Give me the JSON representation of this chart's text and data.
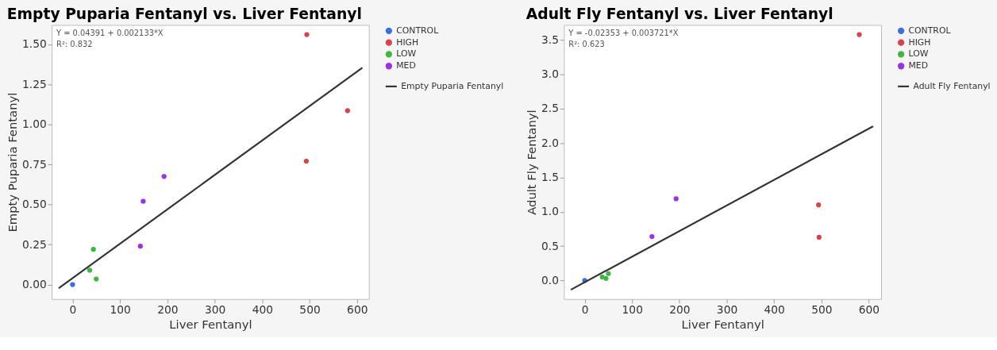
{
  "chart_data": [
    {
      "type": "scatter",
      "title": "Empty Puparia Fentanyl vs. Liver Fentanyl",
      "xlabel": "Liver Fentanyl",
      "ylabel": "Empty Puparia Fentanyl",
      "annotations": [
        "Y = 0.04391 + 0.002133*X",
        "R²: 0.832"
      ],
      "xlim": [
        -44,
        625
      ],
      "ylim": [
        -0.09,
        1.62
      ],
      "xticks": [
        0,
        100,
        200,
        300,
        400,
        500,
        600
      ],
      "yticks": [
        {
          "value": 0,
          "label": "0.00"
        },
        0.25,
        {
          "value": 0.5,
          "label": "0.50"
        },
        0.75,
        {
          "value": 1,
          "label": "1.00"
        },
        1.25,
        {
          "value": 1.5,
          "label": "1.50"
        }
      ],
      "legend": "right",
      "marker": "circle",
      "series": [
        {
          "name": "CONTROL",
          "color": "#3a6fe0",
          "x": [
            0
          ],
          "values": [
            0.0
          ]
        },
        {
          "name": "HIGH",
          "color": "#d9414b",
          "x": [
            494,
            493,
            580
          ],
          "values": [
            1.56,
            0.77,
            1.085
          ]
        },
        {
          "name": "LOW",
          "color": "#3cb83c",
          "x": [
            36,
            44,
            50
          ],
          "values": [
            0.09,
            0.22,
            0.035
          ]
        },
        {
          "name": "MED",
          "color": "#9b30e8",
          "x": [
            143,
            149,
            193
          ],
          "values": [
            0.24,
            0.52,
            0.675
          ]
        },
        {
          "name": "Empty Puparia Fentanyl",
          "type": "line",
          "marker": "none",
          "color": "#333333",
          "x": [
            -28,
            610
          ],
          "values": [
            -0.02,
            1.35
          ]
        }
      ]
    },
    {
      "type": "scatter",
      "title": "Adult Fly Fentanyl vs. Liver Fentanyl",
      "xlabel": "Liver Fentanyl",
      "ylabel": "Adult Fly Fentanyl",
      "annotations": [
        "Y = -0.02353 + 0.003721*X",
        "R²: 0.623"
      ],
      "xlim": [
        -44,
        626
      ],
      "ylim": [
        -0.27,
        3.72
      ],
      "xticks": [
        0,
        100,
        200,
        300,
        400,
        500,
        600
      ],
      "yticks": [
        {
          "value": 0,
          "label": "0.0"
        },
        0.5,
        {
          "value": 1,
          "label": "1.0"
        },
        1.5,
        {
          "value": 2,
          "label": "2.0"
        },
        2.5,
        {
          "value": 3,
          "label": "3.0"
        },
        3.5
      ],
      "legend": "right",
      "marker": "circle",
      "series": [
        {
          "name": "CONTROL",
          "color": "#3a6fe0",
          "x": [
            0
          ],
          "values": [
            0.0
          ]
        },
        {
          "name": "HIGH",
          "color": "#d9414b",
          "x": [
            580,
            494,
            495
          ],
          "values": [
            3.58,
            1.1,
            0.63
          ]
        },
        {
          "name": "LOW",
          "color": "#3cb83c",
          "x": [
            37,
            45,
            50
          ],
          "values": [
            0.05,
            0.03,
            0.1
          ]
        },
        {
          "name": "MED",
          "color": "#9b30e8",
          "x": [
            142,
            193
          ],
          "values": [
            0.64,
            1.19
          ]
        },
        {
          "name": "Adult Fly Fentanyl",
          "type": "line",
          "marker": "none",
          "color": "#333333",
          "x": [
            -28,
            608
          ],
          "values": [
            -0.13,
            2.24
          ]
        }
      ]
    }
  ]
}
